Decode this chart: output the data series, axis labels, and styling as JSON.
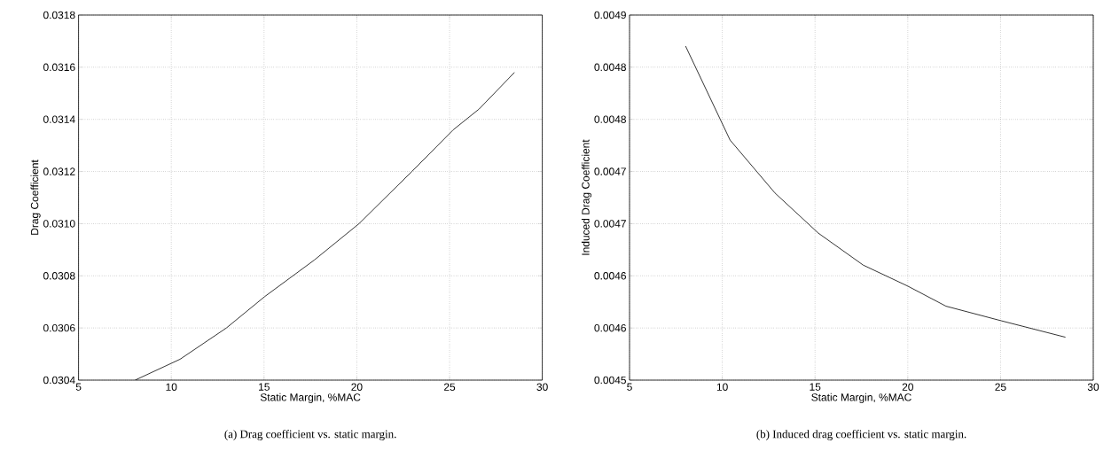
{
  "chart_data": [
    {
      "type": "line",
      "xlabel": "Static Margin, %MAC",
      "ylabel": "Drag Coefficient",
      "annotations": [
        "(a) Drag coefficient vs. static margin."
      ],
      "x": [
        8.05,
        10.47,
        12.97,
        15.03,
        17.7,
        20.12,
        22.97,
        25.2,
        26.6,
        28.5
      ],
      "series": [
        {
          "color": "#000000",
          "values": [
            0.0304,
            0.03048,
            0.0306,
            0.03072,
            0.03086,
            0.031,
            0.0312,
            0.03136,
            0.03144,
            0.03158
          ]
        }
      ],
      "xlim": [
        5,
        30
      ],
      "xticks": [
        5,
        10,
        15,
        20,
        25,
        30
      ],
      "ylim": [
        0.0304,
        0.0318
      ],
      "yticks": [
        0.0304,
        0.0306,
        0.0308,
        {
          "value": 0.031,
          "label": "0.0310"
        },
        0.0312,
        0.0314,
        0.0316,
        0.0318
      ],
      "grid": true
    },
    {
      "type": "line",
      "xlabel": "Static Margin, %MAC",
      "ylabel": "Induced Drag Coefficient",
      "annotations": [
        "(b) Induced drag coefficient vs. static margin."
      ],
      "x": [
        8.02,
        10.42,
        12.84,
        15.18,
        17.6,
        20.0,
        22.06,
        25.04,
        28.5
      ],
      "series": [
        {
          "color": "#000000",
          "values": [
            0.004866,
            0.004763,
            0.004705,
            0.004661,
            0.004626,
            0.004603,
            0.004581,
            0.004565,
            0.004547
          ]
        }
      ],
      "xlim": [
        5,
        30
      ],
      "xticks": [
        5,
        10,
        15,
        20,
        25,
        30
      ],
      "ylim": [
        0.0045,
        0.0049
      ],
      "yticks": [
        {
          "value": 0.0045,
          "label": "0.0045"
        },
        {
          "value": 0.0045571,
          "label": "0.0046"
        },
        {
          "value": 0.0046143,
          "label": "0.0046"
        },
        {
          "value": 0.0046714,
          "label": "0.0047"
        },
        {
          "value": 0.0047286,
          "label": "0.0047"
        },
        {
          "value": 0.0047857,
          "label": "0.0048"
        },
        {
          "value": 0.0048429,
          "label": "0.0048"
        },
        {
          "value": 0.0049,
          "label": "0.0049"
        }
      ],
      "grid": true
    }
  ]
}
